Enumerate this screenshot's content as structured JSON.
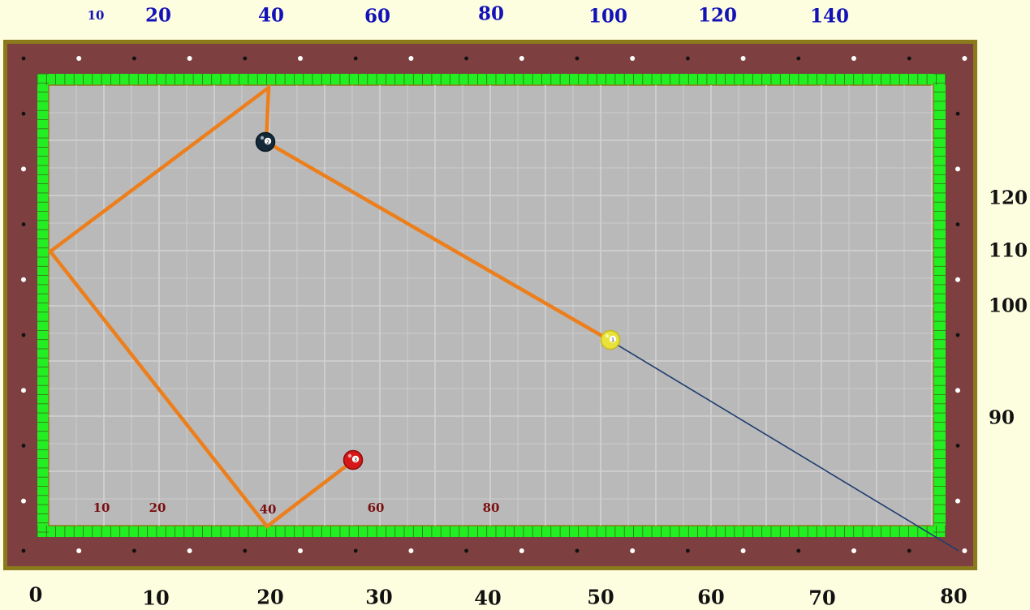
{
  "colors": {
    "frame_outline": "#8a7a1c",
    "rail": "#7d3f3f",
    "cushion": "#22ee22",
    "cloth": "#b9b9b9",
    "grid": "#d2d2d2",
    "path": "#ec7f1c",
    "cue_line": "#1e3d6e",
    "top_label": "#1212b8",
    "inner_label": "#7a0f10"
  },
  "labels": {
    "top": [
      "10",
      "20",
      "40",
      "60",
      "80",
      "100",
      "120",
      "140"
    ],
    "bottom": [
      "0",
      "10",
      "20",
      "30",
      "40",
      "50",
      "60",
      "70",
      "80"
    ],
    "right": [
      "120",
      "110",
      "100",
      "90"
    ],
    "inner": [
      "10",
      "20",
      "40",
      "60",
      "80"
    ]
  },
  "balls": [
    {
      "id": "ball-2",
      "number": "2",
      "color": "#142a3a",
      "stripe": "#0a1820"
    },
    {
      "id": "ball-1",
      "number": "1",
      "color": "#e8e23a",
      "stripe": "#c7b81a"
    },
    {
      "id": "ball-3",
      "number": "3",
      "color": "#d81818",
      "stripe": "#8a0a0a"
    }
  ]
}
